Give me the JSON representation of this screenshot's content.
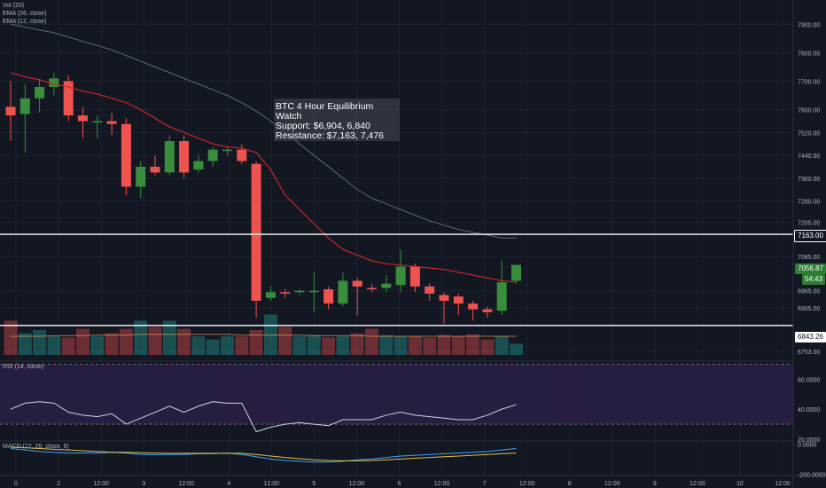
{
  "legend": {
    "vol": "Vol (20)",
    "ema26": "EMA (26, close)",
    "ema12": "EMA (12, close)",
    "rsi": "RSI (14, close)",
    "macd": "MACD (12, 26, close, 9)"
  },
  "annotation": {
    "title": "BTC 4 Hour Equilibrium Watch",
    "support": "Support: $6,904, 6,840",
    "resistance": "Resistance: $7,163, 7,476"
  },
  "tags": {
    "resistance_line": "7163.00",
    "support_line": "6843.26",
    "last_price": "7056.87",
    "last_change": "54:43",
    "last_price_prefix": "70"
  },
  "colors": {
    "background": "#131722",
    "up": "#26a69a",
    "up_candle": "#388e3c",
    "down": "#ef5350",
    "ema12": "#c62828",
    "ema26": "#546e7a",
    "rsi_line": "#d1d4dc",
    "rsi_band": "#2a1e45",
    "macd_line": "#42a5f5",
    "signal_line": "#e0c050"
  },
  "chart_data": [
    {
      "type": "candlestick",
      "title": "",
      "price_axis_ticks": [
        7900.0,
        7800.0,
        7700.0,
        7600.0,
        7520.0,
        7440.0,
        7360.0,
        7280.0,
        7205.0,
        7163.0,
        7085.0,
        7056.87,
        6965.0,
        6905.0,
        6843.26,
        6753.0
      ],
      "price_axis_labels": [
        "7900.00",
        "7800.00",
        "7700.00",
        "7600.00",
        "7520.00",
        "7440.00",
        "7360.00",
        "7280.00",
        "7205.00",
        "7085.00",
        "6965.00",
        "6905.00",
        "6753.00"
      ],
      "time_axis_labels": [
        "0",
        "2",
        "12:00",
        "3",
        "12:00",
        "4",
        "12:00",
        "5",
        "12:00",
        "6",
        "12:00",
        "7",
        "12:00",
        "8",
        "12:00",
        "9",
        "12:00",
        "10",
        "12:00"
      ],
      "ylim": [
        6740,
        7960
      ],
      "candles": [
        {
          "o": 7610,
          "h": 7700,
          "l": 7490,
          "c": 7580
        },
        {
          "o": 7585,
          "h": 7690,
          "l": 7450,
          "c": 7640
        },
        {
          "o": 7640,
          "h": 7710,
          "l": 7590,
          "c": 7680
        },
        {
          "o": 7680,
          "h": 7730,
          "l": 7650,
          "c": 7710
        },
        {
          "o": 7700,
          "h": 7720,
          "l": 7560,
          "c": 7580
        },
        {
          "o": 7580,
          "h": 7610,
          "l": 7500,
          "c": 7560
        },
        {
          "o": 7560,
          "h": 7580,
          "l": 7500,
          "c": 7560
        },
        {
          "o": 7560,
          "h": 7590,
          "l": 7510,
          "c": 7550
        },
        {
          "o": 7550,
          "h": 7570,
          "l": 7300,
          "c": 7330
        },
        {
          "o": 7330,
          "h": 7420,
          "l": 7290,
          "c": 7400
        },
        {
          "o": 7400,
          "h": 7440,
          "l": 7370,
          "c": 7380
        },
        {
          "o": 7380,
          "h": 7510,
          "l": 7370,
          "c": 7490
        },
        {
          "o": 7490,
          "h": 7510,
          "l": 7360,
          "c": 7380
        },
        {
          "o": 7390,
          "h": 7440,
          "l": 7380,
          "c": 7420
        },
        {
          "o": 7420,
          "h": 7470,
          "l": 7400,
          "c": 7460
        },
        {
          "o": 7460,
          "h": 7470,
          "l": 7440,
          "c": 7460
        },
        {
          "o": 7460,
          "h": 7480,
          "l": 7410,
          "c": 7420
        },
        {
          "o": 7410,
          "h": 7420,
          "l": 6870,
          "c": 6930
        },
        {
          "o": 6940,
          "h": 6980,
          "l": 6930,
          "c": 6960
        },
        {
          "o": 6960,
          "h": 6970,
          "l": 6940,
          "c": 6955
        },
        {
          "o": 6960,
          "h": 6970,
          "l": 6950,
          "c": 6965
        },
        {
          "o": 6960,
          "h": 7030,
          "l": 6890,
          "c": 6965
        },
        {
          "o": 6970,
          "h": 6980,
          "l": 6900,
          "c": 6920
        },
        {
          "o": 6920,
          "h": 7030,
          "l": 6910,
          "c": 7000
        },
        {
          "o": 7000,
          "h": 7010,
          "l": 6880,
          "c": 6980
        },
        {
          "o": 6975,
          "h": 6990,
          "l": 6960,
          "c": 6970
        },
        {
          "o": 6975,
          "h": 7020,
          "l": 6960,
          "c": 6990
        },
        {
          "o": 6985,
          "h": 7110,
          "l": 6960,
          "c": 7050
        },
        {
          "o": 7050,
          "h": 7060,
          "l": 6960,
          "c": 6980
        },
        {
          "o": 6980,
          "h": 6990,
          "l": 6930,
          "c": 6955
        },
        {
          "o": 6950,
          "h": 6960,
          "l": 6850,
          "c": 6930
        },
        {
          "o": 6945,
          "h": 6955,
          "l": 6880,
          "c": 6920
        },
        {
          "o": 6920,
          "h": 6930,
          "l": 6860,
          "c": 6900
        },
        {
          "o": 6900,
          "h": 6910,
          "l": 6870,
          "c": 6890
        },
        {
          "o": 6895,
          "h": 7070,
          "l": 6880,
          "c": 6995
        },
        {
          "o": 7000,
          "h": 7056,
          "l": 6990,
          "c": 7056
        }
      ],
      "ema12": [
        7730,
        7715,
        7705,
        7690,
        7680,
        7665,
        7655,
        7640,
        7625,
        7600,
        7570,
        7540,
        7520,
        7500,
        7480,
        7470,
        7465,
        7450,
        7390,
        7300,
        7250,
        7200,
        7150,
        7110,
        7090,
        7070,
        7060,
        7055,
        7050,
        7045,
        7040,
        7030,
        7020,
        7010,
        7000,
        6995
      ],
      "ema26": [
        7900,
        7890,
        7880,
        7870,
        7855,
        7840,
        7825,
        7810,
        7790,
        7770,
        7750,
        7730,
        7710,
        7690,
        7670,
        7650,
        7625,
        7595,
        7560,
        7520,
        7480,
        7440,
        7400,
        7360,
        7320,
        7290,
        7270,
        7250,
        7230,
        7210,
        7195,
        7180,
        7170,
        7160,
        7150,
        7150
      ]
    },
    {
      "type": "bar",
      "title": "Vol (20)",
      "values": [
        55,
        35,
        40,
        30,
        28,
        42,
        30,
        35,
        42,
        55,
        45,
        55,
        42,
        30,
        25,
        30,
        30,
        40,
        65,
        45,
        30,
        32,
        28,
        30,
        35,
        42,
        32,
        30,
        30,
        28,
        32,
        30,
        33,
        25,
        30,
        18
      ],
      "ma": [
        30,
        30,
        30,
        31,
        31,
        31,
        32,
        32,
        32,
        33,
        33,
        33,
        33,
        33,
        33,
        33,
        32,
        32,
        32,
        32,
        32,
        31,
        31,
        31,
        31,
        30,
        30,
        30,
        30,
        30,
        30,
        30,
        30,
        30,
        30,
        30
      ],
      "ylim": [
        0,
        100
      ]
    },
    {
      "type": "line",
      "title": "RSI (14, close)",
      "axis_labels": [
        "60.0000",
        "40.0000",
        "20.0000"
      ],
      "values": [
        40,
        44,
        45,
        44,
        38,
        36,
        35,
        37,
        30,
        34,
        38,
        42,
        38,
        42,
        45,
        44,
        44,
        25,
        28,
        30,
        31,
        30,
        29,
        33,
        33,
        33,
        36,
        38,
        36,
        35,
        34,
        33,
        33,
        36,
        40,
        43
      ],
      "levels": [
        70,
        30
      ],
      "ylim": [
        20,
        72
      ]
    },
    {
      "type": "line",
      "title": "MACD (12, 26, close, 9)",
      "axis_labels": [
        "0.0000",
        "-200.0000"
      ],
      "series": [
        {
          "values": [
            -30,
            -40,
            -50,
            -55,
            -60,
            -60,
            -60,
            -55,
            -60,
            -70,
            -72,
            -70,
            -70,
            -65,
            -65,
            -60,
            -70,
            -85,
            -100,
            -110,
            -115,
            -120,
            -120,
            -115,
            -105,
            -100,
            -90,
            -80,
            -75,
            -70,
            -65,
            -60,
            -55,
            -50,
            -40,
            -30
          ]
        },
        {
          "values": [
            -20,
            -25,
            -30,
            -35,
            -40,
            -45,
            -50,
            -55,
            -55,
            -58,
            -60,
            -62,
            -62,
            -62,
            -62,
            -62,
            -62,
            -70,
            -80,
            -90,
            -98,
            -105,
            -110,
            -112,
            -112,
            -110,
            -105,
            -100,
            -95,
            -90,
            -85,
            -80,
            -75,
            -70,
            -65,
            -60
          ]
        }
      ],
      "ylim": [
        -210,
        20
      ]
    }
  ]
}
